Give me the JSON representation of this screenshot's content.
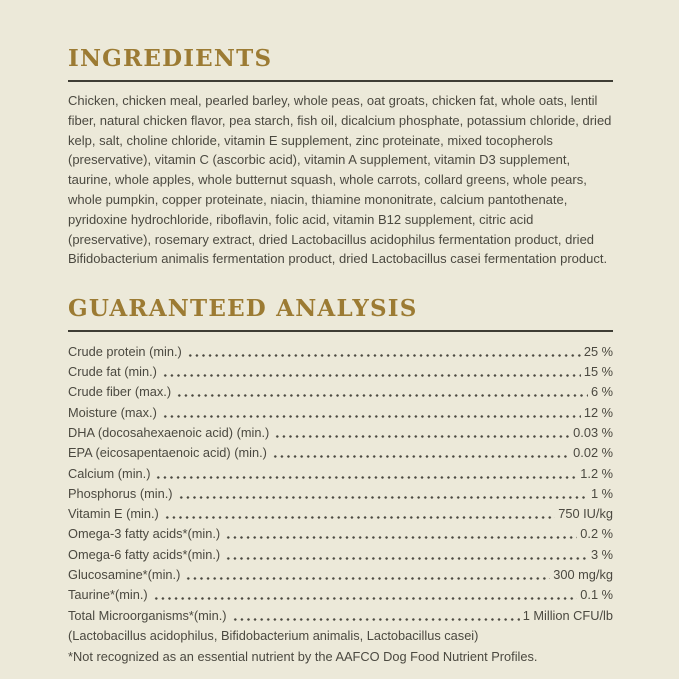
{
  "page": {
    "background_color": "#ece9d9",
    "accent_color": "#9c7b33",
    "text_color": "#4b4940",
    "rule_color": "#3e3d34"
  },
  "ingredients": {
    "heading": "INGREDIENTS",
    "text": "Chicken, chicken meal, pearled barley, whole peas, oat groats, chicken fat, whole oats, lentil fiber, natural chicken flavor, pea starch, fish oil, dicalcium phosphate, potassium chloride, dried kelp, salt, choline chloride, vitamin E supplement, zinc proteinate, mixed tocopherols (preservative), vitamin C (ascorbic acid), vitamin A supplement, vitamin D3 supplement, taurine, whole apples, whole butternut squash, whole carrots, collard greens, whole pears, whole pumpkin, copper proteinate, niacin, thiamine mononitrate, calcium pantothenate, pyridoxine hydrochloride, riboflavin, folic acid, vitamin B12 supplement, citric acid (preservative), rosemary extract, dried Lactobacillus acidophilus fermentation product, dried Bifidobacterium animalis fermentation product, dried Lactobacillus casei fermentation product."
  },
  "analysis": {
    "heading": "GUARANTEED ANALYSIS",
    "rows": [
      {
        "label": "Crude protein (min.)",
        "value": "25 %"
      },
      {
        "label": "Crude fat (min.)",
        "value": "15 %"
      },
      {
        "label": "Crude fiber (max.)",
        "value": "6 %"
      },
      {
        "label": "Moisture (max.)",
        "value": "12 %"
      },
      {
        "label": "DHA (docosahexaenoic acid) (min.)",
        "value": "0.03 %"
      },
      {
        "label": "EPA (eicosapentaenoic acid) (min.)",
        "value": "0.02 %"
      },
      {
        "label": "Calcium (min.)",
        "value": "1.2 %"
      },
      {
        "label": "Phosphorus (min.)",
        "value": "1 %"
      },
      {
        "label": "Vitamin E (min.)",
        "value": "750 IU/kg"
      },
      {
        "label": "Omega-3 fatty acids*(min.)",
        "value": "0.2 %"
      },
      {
        "label": "Omega-6 fatty acids*(min.)",
        "value": "3 %"
      },
      {
        "label": "Glucosamine*(min.)",
        "value": "300 mg/kg"
      },
      {
        "label": "Taurine*(min.)",
        "value": "0.1 %"
      },
      {
        "label": "Total Microorganisms*(min.)",
        "value": "1 Million CFU/lb"
      }
    ],
    "microorganisms_note": "(Lactobacillus acidophilus, Bifidobacterium animalis, Lactobacillus casei)",
    "footnote": "*Not recognized as an essential nutrient by the AAFCO Dog Food Nutrient Profiles."
  }
}
